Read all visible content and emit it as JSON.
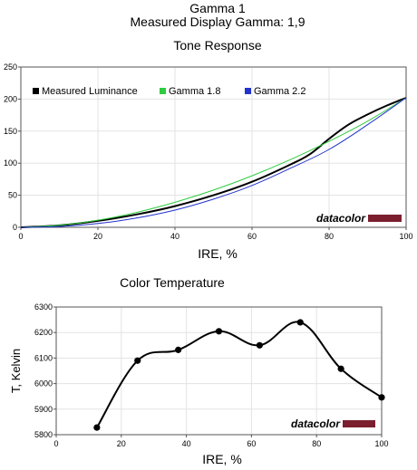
{
  "header": {
    "title": "Gamma 1",
    "subtitle": "Measured Display Gamma: 1,9"
  },
  "chart_data": [
    {
      "type": "line",
      "title": "Tone Response",
      "xlabel": "IRE, %",
      "ylabel": "",
      "xlim": [
        0,
        100
      ],
      "ylim": [
        0,
        250
      ],
      "xticks": [
        "0",
        "20",
        "40",
        "60",
        "80",
        "100"
      ],
      "yticks": [
        "0",
        "50",
        "100",
        "150",
        "200",
        "250"
      ],
      "grid": true,
      "legend_position": "top",
      "brand": "datacolor",
      "brand_bar_color": "#7b1f2e",
      "series": [
        {
          "name": "Measured Luminance",
          "color": "#000000",
          "x": [
            0,
            10,
            20,
            30,
            40,
            50,
            60,
            70,
            75,
            80,
            85,
            90,
            95,
            100
          ],
          "y": [
            0,
            3,
            10,
            20,
            33,
            50,
            71,
            98,
            114,
            138,
            160,
            176,
            190,
            202
          ]
        },
        {
          "name": "Gamma 1.8",
          "color": "#2ecc40",
          "x": [
            0,
            10,
            20,
            30,
            40,
            50,
            60,
            70,
            80,
            90,
            100
          ],
          "y": [
            0,
            3.2,
            11.1,
            23.1,
            39.0,
            58.0,
            80.3,
            105.6,
            134.0,
            165.6,
            202.0
          ]
        },
        {
          "name": "Gamma 2.2",
          "color": "#2233cc",
          "x": [
            0,
            10,
            20,
            30,
            40,
            50,
            60,
            70,
            80,
            90,
            100
          ],
          "y": [
            0,
            1.3,
            5.9,
            14.4,
            26.9,
            43.9,
            65.2,
            92.2,
            121.4,
            160.0,
            202.0
          ]
        }
      ]
    },
    {
      "type": "line",
      "title": "Color Temperature",
      "xlabel": "IRE, %",
      "ylabel": "T, Kelvin",
      "xlim": [
        0,
        100
      ],
      "ylim": [
        5800,
        6300
      ],
      "xticks": [
        "0",
        "20",
        "40",
        "60",
        "80",
        "100"
      ],
      "yticks": [
        "5800",
        "5900",
        "6000",
        "6100",
        "6200",
        "6300"
      ],
      "grid": true,
      "brand": "datacolor",
      "brand_bar_color": "#7b1f2e",
      "series": [
        {
          "name": "",
          "color": "#000000",
          "x": [
            12.5,
            25,
            37.5,
            50,
            62.5,
            75,
            87.5,
            100
          ],
          "y": [
            5828,
            6090,
            6132,
            6205,
            6150,
            6240,
            6058,
            5946
          ]
        }
      ]
    }
  ]
}
